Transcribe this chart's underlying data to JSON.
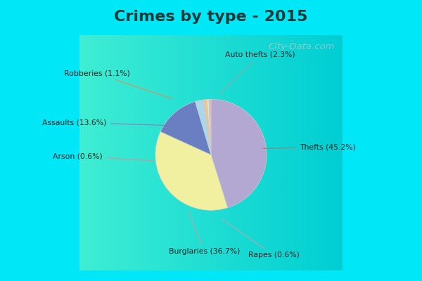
{
  "title": "Crimes by type - 2015",
  "title_fontsize": 16,
  "title_fontweight": "bold",
  "title_color": "#1a3a3a",
  "labels": [
    "Thefts",
    "Burglaries",
    "Assaults",
    "Auto thefts",
    "Robberies",
    "Rapes",
    "Arson"
  ],
  "pct_labels": [
    "Thefts (45.2%)",
    "Burglaries (36.7%)",
    "Assaults (13.6%)",
    "Auto thefts (2.3%)",
    "Robberies (1.1%)",
    "Rapes (0.6%)",
    "Arson (0.6%)"
  ],
  "values": [
    45.2,
    36.7,
    13.6,
    2.3,
    1.1,
    0.6,
    0.6
  ],
  "colors": [
    "#b3a8d1",
    "#f0f0a0",
    "#6a7ec2",
    "#a8d8ea",
    "#e8c4a0",
    "#d4f0c0",
    "#f0b0b0"
  ],
  "cyan_color": "#00e8f8",
  "chart_bg_top_left": "#c8f0d8",
  "chart_bg_bottom_right": "#d0eee8",
  "watermark": "City-Data.com",
  "watermark_color": "#a0c8cc",
  "fig_width": 6.0,
  "fig_height": 4.0,
  "dpi": 100
}
